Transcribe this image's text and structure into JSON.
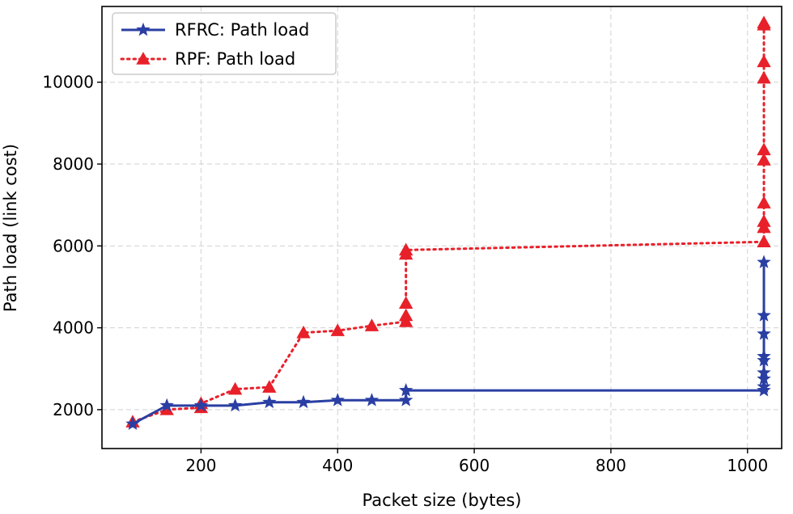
{
  "chart_data": {
    "type": "line",
    "title": "",
    "xlabel": "Packet size (bytes)",
    "ylabel": "Path load (link cost)",
    "xlim": [
      55,
      1050
    ],
    "ylim": [
      1050,
      11850
    ],
    "xticks": [
      200,
      400,
      600,
      800,
      1000
    ],
    "yticks": [
      2000,
      4000,
      6000,
      8000,
      10000
    ],
    "grid": true,
    "legend_position": "top-left",
    "series": [
      {
        "name": "RFRC: Path load",
        "color": "#2a3fa3",
        "line_style": "solid",
        "marker": "star",
        "x": [
          100,
          150,
          200,
          250,
          300,
          350,
          400,
          450,
          500,
          500,
          1024,
          1024,
          1024,
          1024,
          1024,
          1024,
          1024,
          1024,
          1024
        ],
        "y": [
          1650,
          2100,
          2100,
          2100,
          2180,
          2180,
          2230,
          2230,
          2230,
          2470,
          2470,
          2560,
          2750,
          2900,
          3200,
          3300,
          3850,
          4300,
          5600
        ]
      },
      {
        "name": "RPF: Path load",
        "color": "#e8202a",
        "line_style": "dotted",
        "marker": "triangle",
        "x": [
          100,
          150,
          200,
          200,
          250,
          300,
          350,
          400,
          450,
          500,
          500,
          500,
          500,
          500,
          1024,
          1024,
          1024,
          1024,
          1024,
          1024,
          1024,
          1024,
          1024,
          1024
        ],
        "y": [
          1700,
          2000,
          2050,
          2150,
          2500,
          2550,
          3880,
          3930,
          4050,
          4150,
          4300,
          4600,
          5800,
          5900,
          6100,
          6450,
          6600,
          7050,
          8100,
          8350,
          10100,
          10500,
          11400,
          11450
        ]
      }
    ]
  }
}
